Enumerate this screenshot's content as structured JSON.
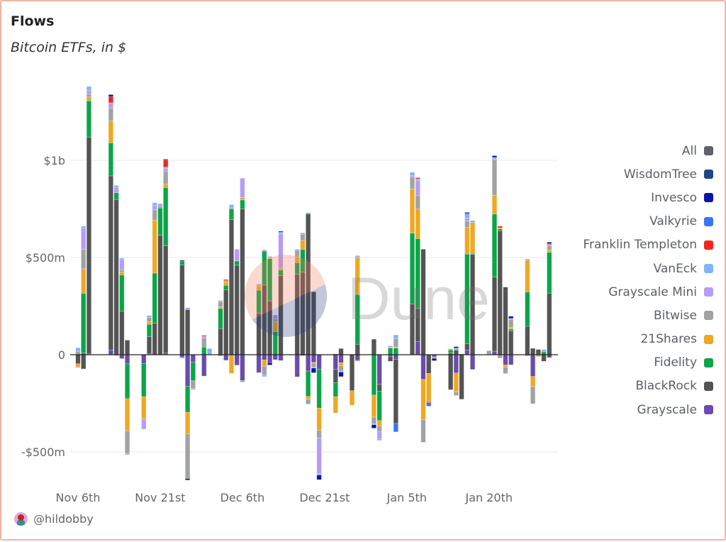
{
  "header": {
    "title": "Flows",
    "subtitle": "Bitcoin ETFs, in $"
  },
  "footer": {
    "handle": "@hildobby"
  },
  "watermark": {
    "text": "Dune"
  },
  "chart_data": {
    "type": "bar",
    "stacked": true,
    "title": "Flows",
    "subtitle": "Bitcoin ETFs, in $",
    "unit": "$m",
    "ylim": [
      -700,
      1450
    ],
    "grid": true,
    "legend_position": "right",
    "y_ticks": [
      {
        "label": "$1b",
        "value": 1000
      },
      {
        "label": "$500m",
        "value": 500
      },
      {
        "label": "0",
        "value": 0
      },
      {
        "label": "-$500m",
        "value": -500
      }
    ],
    "x_ticks": [
      {
        "label": "Nov 6th",
        "date": "2024-11-06"
      },
      {
        "label": "Nov 21st",
        "date": "2024-11-21"
      },
      {
        "label": "Dec 6th",
        "date": "2024-12-06"
      },
      {
        "label": "Dec 21st",
        "date": "2024-12-21"
      },
      {
        "label": "Jan 5th",
        "date": "2025-01-05"
      },
      {
        "label": "Jan 20th",
        "date": "2025-01-20"
      }
    ],
    "legend": [
      {
        "name": "All",
        "color": "#5f6266"
      },
      {
        "name": "WisdomTree",
        "color": "#1f4589"
      },
      {
        "name": "Invesco",
        "color": "#0a14a6"
      },
      {
        "name": "Valkyrie",
        "color": "#3b74f2"
      },
      {
        "name": "Franklin Templeton",
        "color": "#f2261c"
      },
      {
        "name": "VanEck",
        "color": "#80b4fa"
      },
      {
        "name": "Grayscale Mini",
        "color": "#b59cf8"
      },
      {
        "name": "Bitwise",
        "color": "#a1a3a2"
      },
      {
        "name": "21Shares",
        "color": "#eea822"
      },
      {
        "name": "Fidelity",
        "color": "#0aa548"
      },
      {
        "name": "BlackRock",
        "color": "#545454"
      },
      {
        "name": "Grayscale",
        "color": "#6a4caa"
      }
    ],
    "stack_order": [
      "Grayscale",
      "BlackRock",
      "Fidelity",
      "21Shares",
      "Bitwise",
      "Grayscale Mini",
      "VanEck",
      "Franklin Templeton",
      "Valkyrie",
      "Invesco",
      "WisdomTree"
    ],
    "days": [
      {
        "date": "2024-11-06",
        "values": {
          "BlackRock": -47,
          "21Shares": -14,
          "Franklin Templeton": -3,
          "Bitwise": 18,
          "VanEck": 18
        }
      },
      {
        "date": "2024-11-07",
        "values": {
          "Grayscale": 8,
          "Fidelity": 308,
          "21Shares": 126,
          "Bitwise": 100,
          "Grayscale Mini": 109,
          "VanEck": 10,
          "BlackRock": -73
        }
      },
      {
        "date": "2024-11-08",
        "values": {
          "Grayscale": 4,
          "BlackRock": 1116,
          "Fidelity": 186,
          "21Shares": 20,
          "Bitwise": 14,
          "Grayscale Mini": 20,
          "VanEck": 20
        }
      },
      {
        "date": "2024-11-12",
        "values": {
          "Grayscale": 25,
          "BlackRock": 895,
          "Fidelity": 170,
          "21Shares": 112,
          "Bitwise": 66,
          "Grayscale Mini": 28,
          "Franklin Templeton": 32,
          "Invesco": 10
        }
      },
      {
        "date": "2024-11-13",
        "values": {
          "21Shares": -5,
          "BlackRock": 798,
          "Fidelity": 35,
          "Grayscale Mini": 28,
          "VanEck": 10
        }
      },
      {
        "date": "2024-11-14",
        "values": {
          "Grayscale": -20,
          "BlackRock": 225,
          "Fidelity": 186,
          "21Shares": 14,
          "Bitwise": 12,
          "Grayscale Mini": 53,
          "VanEck": 7
        }
      },
      {
        "date": "2024-11-15",
        "values": {
          "BlackRock": 75,
          "Grayscale": -47,
          "Fidelity": -179,
          "21Shares": -165,
          "Bitwise": -117,
          "VanEck": -7
        }
      },
      {
        "date": "2024-11-18",
        "values": {
          "Grayscale": -46,
          "Fidelity": -170,
          "21Shares": -112,
          "Bitwise": -7,
          "Grayscale Mini": -48
        }
      },
      {
        "date": "2024-11-19",
        "values": {
          "Grayscale": 4,
          "BlackRock": 89,
          "Fidelity": 63,
          "21Shares": 14,
          "Bitwise": 22,
          "VanEck": 10
        }
      },
      {
        "date": "2024-11-20",
        "values": {
          "BlackRock": 162,
          "Fidelity": 258,
          "21Shares": 272,
          "Bitwise": 53,
          "Grayscale Mini": 24,
          "VanEck": 13
        }
      },
      {
        "date": "2024-11-21",
        "values": {
          "BlackRock": 615,
          "Fidelity": 140,
          "Bitwise": 11,
          "Grayscale Mini": 11
        }
      },
      {
        "date": "2024-11-22",
        "values": {
          "Grayscale": 8,
          "BlackRock": 552,
          "Fidelity": 300,
          "21Shares": 17,
          "Bitwise": 67,
          "Grayscale Mini": 14,
          "VanEck": 7,
          "Franklin Templeton": 38,
          "Invesco": 3
        }
      },
      {
        "date": "2024-11-25",
        "values": {
          "Grayscale": -14,
          "BlackRock": 461,
          "Fidelity": 20,
          "Invesco": 5,
          "VanEck": -5
        }
      },
      {
        "date": "2024-11-26",
        "values": {
          "BlackRock": 232,
          "Grayscale Mini": 10,
          "Grayscale": -162,
          "Fidelity": -134,
          "21Shares": -112,
          "Bitwise": -229,
          "Invesco": -8
        }
      },
      {
        "date": "2024-11-27",
        "values": {
          "Grayscale": -38,
          "Fidelity": -96,
          "Bitwise": -39,
          "Grayscale Mini": -7
        }
      },
      {
        "date": "2024-11-29",
        "values": {
          "Fidelity": 39,
          "Bitwise": 46,
          "Grayscale Mini": 10,
          "Franklin Templeton": 5,
          "Grayscale": -110
        }
      },
      {
        "date": "2024-11-30",
        "values": {
          "VanEck": 32
        }
      },
      {
        "date": "2024-12-02",
        "values": {
          "VanEck": -8,
          "BlackRock": 135,
          "Fidelity": 103,
          "21Shares": 8,
          "Bitwise": 26,
          "Grayscale Mini": 7
        }
      },
      {
        "date": "2024-12-03",
        "values": {
          "Grayscale": -29,
          "BlackRock": 333,
          "Fidelity": 24,
          "21Shares": 18,
          "Bitwise": 6,
          "Franklin Templeton": 6
        }
      },
      {
        "date": "2024-12-04",
        "values": {
          "21Shares": -96,
          "BlackRock": 695,
          "Fidelity": 55,
          "Bitwise": 6,
          "VanEck": 16
        }
      },
      {
        "date": "2024-12-05",
        "values": {
          "Grayscale": -54,
          "BlackRock": 460,
          "Fidelity": 22,
          "Grayscale Mini": 61
        }
      },
      {
        "date": "2024-12-06",
        "values": {
          "Grayscale": -133,
          "Bitwise": -8,
          "BlackRock": 750,
          "Fidelity": 46,
          "21Shares": 12,
          "Grayscale Mini": 100
        }
      },
      {
        "date": "2024-12-09",
        "values": {
          "Grayscale": -92,
          "BlackRock": 214,
          "Fidelity": 118,
          "21Shares": 22,
          "Grayscale Mini": 9
        }
      },
      {
        "date": "2024-12-10",
        "values": {
          "Grayscale": -27,
          "21Shares": -33,
          "Bitwise": -43,
          "VanEck": -10,
          "BlackRock": 358,
          "Fidelity": 175,
          "Grayscale Mini": 7
        }
      },
      {
        "date": "2024-12-11",
        "values": {
          "Grayscale": -41,
          "Invesco": -12,
          "BlackRock": 277,
          "Fidelity": 217,
          "21Shares": 6,
          "Grayscale Mini": 6
        }
      },
      {
        "date": "2024-12-12",
        "values": {
          "Grayscale": -26,
          "Fidelity": 119,
          "21Shares": 52,
          "Bitwise": 12,
          "Grayscale Mini": 21
        }
      },
      {
        "date": "2024-12-13",
        "values": {
          "Grayscale": -30,
          "BlackRock": 406,
          "Fidelity": 30,
          "21Shares": 9,
          "Grayscale Mini": 176,
          "VanEck": 9,
          "WisdomTree": 6
        }
      },
      {
        "date": "2024-12-16",
        "values": {
          "Grayscale": -114,
          "BlackRock": 414,
          "Fidelity": 60,
          "21Shares": 29,
          "Bitwise": 34,
          "Grayscale Mini": 6
        }
      },
      {
        "date": "2024-12-17",
        "values": {
          "Grayscale": -5,
          "BlackRock": 424,
          "Fidelity": 118,
          "21Shares": 46,
          "Bitwise": 30,
          "Grayscale Mini": 9
        }
      },
      {
        "date": "2024-12-18",
        "values": {
          "Grayscale": -84,
          "Fidelity": -131,
          "21Shares": -15,
          "Bitwise": -24,
          "BlackRock": 725,
          "VanEck": 6
        }
      },
      {
        "date": "2024-12-19",
        "values": {
          "Grayscale": -39,
          "21Shares": -6,
          "Bitwise": -18,
          "VanEck": -6,
          "Invesco": -24,
          "BlackRock": 324
        }
      },
      {
        "date": "2024-12-20",
        "values": {
          "Grayscale": -75,
          "Fidelity": -200,
          "21Shares": -113,
          "Bitwise": -40,
          "Grayscale Mini": -183,
          "VanEck": -8,
          "Invesco": -24
        }
      },
      {
        "date": "2024-12-23",
        "values": {
          "Grayscale": -75,
          "BlackRock": -69,
          "Fidelity": -73,
          "21Shares": -83,
          "Franklin Templeton": 4
        }
      },
      {
        "date": "2024-12-24",
        "values": {
          "BlackRock": 32,
          "Grayscale": -41,
          "21Shares": -16,
          "Bitwise": -27,
          "Grayscale Mini": -5,
          "Invesco": -24
        }
      },
      {
        "date": "2024-12-26",
        "values": {
          "BlackRock": -185,
          "21Shares": -75,
          "Bitwise": 3
        }
      },
      {
        "date": "2024-12-27",
        "values": {
          "Grayscale": -29,
          "Bitwise": -5,
          "BlackRock": 54,
          "Fidelity": 256,
          "21Shares": 191,
          "VanEck": 9
        }
      },
      {
        "date": "2024-12-30",
        "values": {
          "BlackRock": 80,
          "Fidelity": -208,
          "21Shares": -113,
          "Bitwise": -34,
          "Invesco": -18,
          "VanEck": -5
        }
      },
      {
        "date": "2024-12-31",
        "values": {
          "Grayscale": -153,
          "BlackRock": -34,
          "Fidelity": -152,
          "21Shares": -28,
          "Bitwise": -29,
          "Grayscale Mini": -37,
          "VanEck": -8
        }
      },
      {
        "date": "2025-01-02",
        "values": {
          "Grayscale": -10,
          "BlackRock": -24,
          "Fidelity": 34,
          "Bitwise": 4,
          "Grayscale Mini": 8
        }
      },
      {
        "date": "2025-01-03",
        "values": {
          "Grayscale": -24,
          "BlackRock": -330,
          "Valkyrie": -43,
          "Fidelity": 34,
          "21Shares": 6,
          "Bitwise": 43,
          "VanEck": 19
        }
      },
      {
        "date": "2025-01-06",
        "values": {
          "BlackRock": 260,
          "Fidelity": 365,
          "21Shares": 228,
          "Bitwise": 61,
          "Grayscale Mini": 9,
          "VanEck": 16
        }
      },
      {
        "date": "2025-01-07",
        "values": {
          "Grayscale": 68,
          "BlackRock": 170,
          "Fidelity": 359,
          "21Shares": 152,
          "Bitwise": 69,
          "Grayscale Mini": 77,
          "Franklin Templeton": 6,
          "VanEck": 10
        }
      },
      {
        "date": "2025-01-08",
        "values": {
          "BlackRock": 543,
          "Grayscale": -127,
          "21Shares": -207,
          "Bitwise": -112,
          "Franklin Templeton": -4
        }
      },
      {
        "date": "2025-01-09",
        "values": {
          "BlackRock": -96,
          "21Shares": -146,
          "Franklin Templeton": -5,
          "Valkyrie": -18
        }
      },
      {
        "date": "2025-01-10",
        "values": {
          "Grayscale": -11,
          "Bitwise": -8,
          "Invesco": -12
        }
      },
      {
        "date": "2025-01-13",
        "values": {
          "Grayscale": 9,
          "Fidelity": 16,
          "21Shares": 6,
          "BlackRock": -180
        }
      },
      {
        "date": "2025-01-14",
        "values": {
          "BlackRock": 24,
          "VanEck": 9,
          "WisdomTree": 9,
          "Grayscale": -94,
          "21Shares": -98,
          "Bitwise": -18
        }
      },
      {
        "date": "2025-01-15",
        "values": {
          "BlackRock": -229,
          "21Shares": 5
        }
      },
      {
        "date": "2025-01-16",
        "values": {
          "Grayscale": 24,
          "BlackRock": 33,
          "Fidelity": 461,
          "21Shares": 137,
          "Bitwise": 32,
          "Grayscale Mini": 15,
          "VanEck": 22,
          "Invesco": 5,
          "WisdomTree": 4
        }
      },
      {
        "date": "2025-01-17",
        "values": {
          "BlackRock": 516,
          "Fidelity": 5,
          "21Shares": 159,
          "VanEck": 10,
          "Grayscale": -76
        }
      },
      {
        "date": "2025-01-20",
        "values": {
          "Bitwise": 21
        }
      },
      {
        "date": "2025-01-21",
        "values": {
          "Grayscale": 18,
          "BlackRock": 381,
          "Fidelity": 325,
          "21Shares": 96,
          "Bitwise": 184,
          "VanEck": 11,
          "Invesco": 9
        }
      },
      {
        "date": "2025-01-22",
        "values": {
          "BlackRock": 638,
          "Fidelity": 9,
          "21Shares": 6,
          "Franklin Templeton": 9,
          "Bitwise": -18
        }
      },
      {
        "date": "2025-01-23",
        "values": {
          "BlackRock": 348,
          "Grayscale": -52,
          "21Shares": -12,
          "Bitwise": -33
        }
      },
      {
        "date": "2025-01-24",
        "values": {
          "BlackRock": 122,
          "Fidelity": 10,
          "21Shares": 9,
          "Bitwise": 39,
          "VanEck": 7,
          "Invesco": 11,
          "Grayscale": -52
        }
      },
      {
        "date": "2025-01-27",
        "values": {
          "BlackRock": 146,
          "Fidelity": 177,
          "21Shares": 163,
          "Grayscale Mini": 7,
          "VanEck": -7
        }
      },
      {
        "date": "2025-01-28",
        "values": {
          "BlackRock": 33,
          "Grayscale": -112,
          "21Shares": -52,
          "Bitwise": -89
        }
      },
      {
        "date": "2025-01-29",
        "values": {
          "BlackRock": 27,
          "21Shares": -10
        }
      },
      {
        "date": "2025-01-30",
        "values": {
          "Fidelity": 15,
          "VanEck": 12,
          "BlackRock": -34
        }
      },
      {
        "date": "2025-01-31",
        "values": {
          "BlackRock": 317,
          "Fidelity": 210,
          "21Shares": 12,
          "Bitwise": 22,
          "Grayscale Mini": 6,
          "Franklin Templeton": 5,
          "Invesco": 7,
          "Grayscale": -15
        }
      }
    ]
  }
}
